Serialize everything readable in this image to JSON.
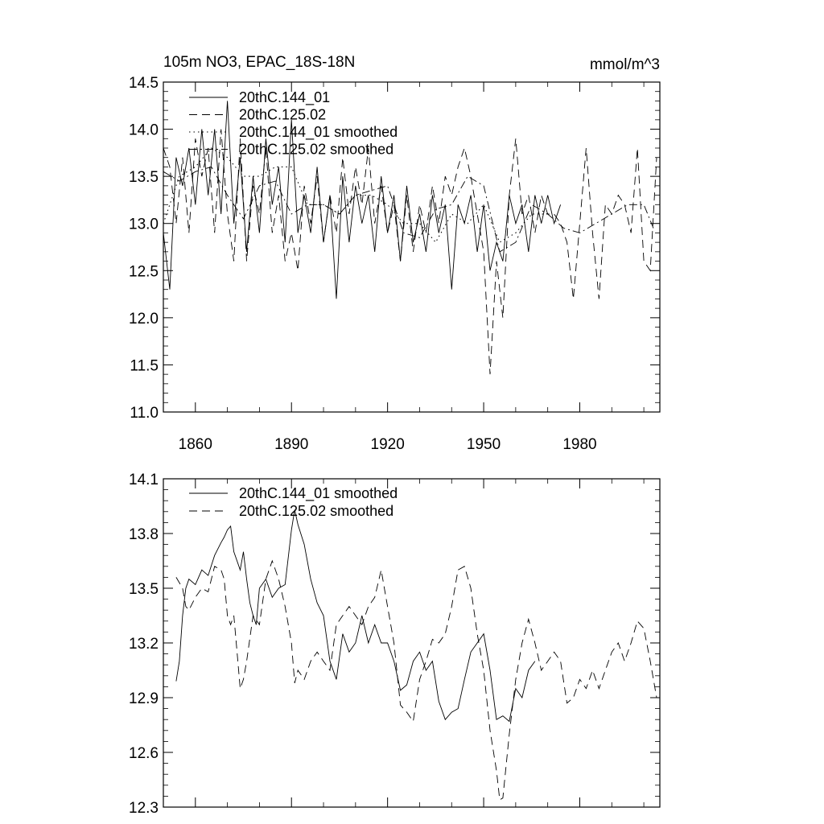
{
  "chart_data": [
    {
      "type": "line",
      "title": "105m NO3, EPAC_18S-18N",
      "units": "mmol/m^3",
      "xlabel": "",
      "ylabel": "",
      "xlim": [
        1850,
        2005
      ],
      "ylim": [
        11.0,
        14.5
      ],
      "x_ticks": [
        1860,
        1890,
        1920,
        1950,
        1980
      ],
      "x_tick_labels": [
        "1860",
        "1890",
        "1920",
        "1950",
        "1980"
      ],
      "y_ticks": [
        11.0,
        11.5,
        12.0,
        12.5,
        13.0,
        13.5,
        14.0,
        14.5
      ],
      "y_tick_labels": [
        "11.0",
        "11.5",
        "12.0",
        "12.5",
        "13.0",
        "13.5",
        "14.0",
        "14.5"
      ],
      "legend_position": "top-left",
      "series": [
        {
          "name": "20thC.144_01",
          "style": "solid",
          "x": [
            1850,
            1852,
            1854,
            1856,
            1858,
            1860,
            1862,
            1864,
            1866,
            1868,
            1870,
            1872,
            1874,
            1876,
            1878,
            1880,
            1882,
            1884,
            1886,
            1888,
            1890,
            1892,
            1894,
            1896,
            1898,
            1900,
            1902,
            1904,
            1906,
            1908,
            1910,
            1912,
            1914,
            1916,
            1918,
            1920,
            1922,
            1924,
            1926,
            1928,
            1930,
            1932,
            1934,
            1936,
            1938,
            1940,
            1942,
            1944,
            1946,
            1948,
            1950,
            1952,
            1954,
            1956,
            1958,
            1960,
            1962,
            1964,
            1966,
            1968,
            1970,
            1972,
            1974,
            1976,
            1978,
            1980,
            1982,
            1984,
            1986,
            1988,
            1990,
            1992,
            1994,
            1996,
            1998,
            2000,
            2002,
            2004
          ],
          "values": [
            12.9,
            12.3,
            13.7,
            13.4,
            13.8,
            13.2,
            14.0,
            13.3,
            14.0,
            13.1,
            14.3,
            13.0,
            13.7,
            12.7,
            13.5,
            12.9,
            13.9,
            13.2,
            13.6,
            12.8,
            14.1,
            12.9,
            13.3,
            12.9,
            13.6,
            12.8,
            13.3,
            12.2,
            13.5,
            12.8,
            13.4,
            13.0,
            13.3,
            12.7,
            13.5,
            12.9,
            13.3,
            12.6,
            13.4,
            12.8,
            13.1,
            12.7,
            13.3,
            12.9,
            13.2,
            12.3,
            13.2,
            13.0,
            13.3,
            12.7,
            13.2,
            12.5,
            12.8,
            12.6,
            13.3,
            13.0,
            13.2,
            12.7,
            13.3,
            13.0,
            13.3,
            13.0,
            13.2,
            null,
            null,
            null,
            null,
            null,
            null,
            null,
            null,
            null,
            null,
            null,
            null,
            null,
            null,
            null
          ]
        },
        {
          "name": "20thC.125.02",
          "style": "dashed",
          "x": [
            1850,
            1852,
            1854,
            1856,
            1858,
            1860,
            1862,
            1864,
            1866,
            1868,
            1870,
            1872,
            1874,
            1876,
            1878,
            1880,
            1882,
            1884,
            1886,
            1888,
            1890,
            1892,
            1894,
            1896,
            1898,
            1900,
            1902,
            1904,
            1906,
            1908,
            1910,
            1912,
            1914,
            1916,
            1918,
            1920,
            1922,
            1924,
            1926,
            1928,
            1930,
            1932,
            1934,
            1936,
            1938,
            1940,
            1942,
            1944,
            1946,
            1948,
            1950,
            1952,
            1954,
            1956,
            1958,
            1960,
            1962,
            1964,
            1966,
            1968,
            1970,
            1972,
            1974,
            1976,
            1978,
            1980,
            1982,
            1984,
            1986,
            1988,
            1990,
            1992,
            1994,
            1996,
            1998,
            2000,
            2002,
            2004
          ],
          "values": [
            13.8,
            13.6,
            13.0,
            13.7,
            12.9,
            13.9,
            13.5,
            13.8,
            12.9,
            14.0,
            13.1,
            12.6,
            13.9,
            12.6,
            13.4,
            13.1,
            13.8,
            12.9,
            13.3,
            12.6,
            12.9,
            12.5,
            13.4,
            13.0,
            13.5,
            12.8,
            13.3,
            12.9,
            13.7,
            13.1,
            13.6,
            13.2,
            13.8,
            13.0,
            13.4,
            12.9,
            13.2,
            12.6,
            13.3,
            12.7,
            13.2,
            12.9,
            13.4,
            13.0,
            13.5,
            13.3,
            13.6,
            13.8,
            13.5,
            13.1,
            12.7,
            11.4,
            12.6,
            12.0,
            13.3,
            13.9,
            13.1,
            13.3,
            12.9,
            13.3,
            13.1,
            13.1,
            13.0,
            12.8,
            12.2,
            13.0,
            13.8,
            12.9,
            12.2,
            13.2,
            13.1,
            13.3,
            13.2,
            12.9,
            13.8,
            12.6,
            12.5,
            13.7
          ]
        },
        {
          "name": "20thC.144_01 smoothed",
          "style": "dotted",
          "x": [
            1850,
            1855,
            1860,
            1865,
            1870,
            1875,
            1880,
            1885,
            1890,
            1895,
            1900,
            1905,
            1910,
            1915,
            1920,
            1925,
            1930,
            1935,
            1940,
            1945,
            1950,
            1955,
            1960,
            1965,
            1970
          ],
          "values": [
            13.0,
            13.5,
            13.6,
            13.8,
            13.7,
            13.5,
            13.5,
            13.6,
            13.6,
            13.2,
            13.2,
            13.1,
            13.3,
            13.3,
            13.2,
            13.0,
            13.0,
            12.8,
            13.1,
            13.0,
            13.2,
            12.8,
            12.9,
            13.1,
            13.1
          ]
        },
        {
          "name": "20thC.125.02 smoothed",
          "style": "dash-dot",
          "x": [
            1850,
            1855,
            1860,
            1865,
            1870,
            1875,
            1880,
            1885,
            1890,
            1895,
            1900,
            1905,
            1910,
            1915,
            1920,
            1925,
            1930,
            1935,
            1940,
            1945,
            1950,
            1955,
            1960,
            1965,
            1970,
            1975,
            1980,
            1985,
            1990,
            1995,
            2000,
            2003
          ],
          "values": [
            13.55,
            13.45,
            13.55,
            13.6,
            13.3,
            13.05,
            13.4,
            13.45,
            13.1,
            13.2,
            13.2,
            13.1,
            13.3,
            13.35,
            13.4,
            12.9,
            12.85,
            13.15,
            13.2,
            13.5,
            13.4,
            12.7,
            12.8,
            13.2,
            13.1,
            12.95,
            12.9,
            13.0,
            13.1,
            13.2,
            13.2,
            12.95
          ]
        }
      ]
    },
    {
      "type": "line",
      "title": "",
      "xlabel": "",
      "ylabel": "",
      "xlim": [
        1850,
        2005
      ],
      "ylim": [
        12.3,
        14.1
      ],
      "x_ticks": [
        1860,
        1890,
        1920,
        1950,
        1980
      ],
      "y_ticks": [
        12.3,
        12.6,
        12.9,
        13.2,
        13.5,
        13.8,
        14.1
      ],
      "y_tick_labels": [
        "12.3",
        "12.6",
        "12.9",
        "13.2",
        "13.5",
        "13.8",
        "14.1"
      ],
      "legend_position": "top-left",
      "series": [
        {
          "name": "20thC.144_01 smoothed",
          "style": "solid",
          "x": [
            1854,
            1855,
            1856,
            1857,
            1858,
            1860,
            1862,
            1864,
            1866,
            1868,
            1869,
            1870,
            1871,
            1872,
            1874,
            1875,
            1876,
            1877,
            1878,
            1879,
            1880,
            1882,
            1884,
            1886,
            1888,
            1890,
            1891,
            1892,
            1894,
            1896,
            1898,
            1900,
            1902,
            1904,
            1906,
            1908,
            1910,
            1912,
            1914,
            1916,
            1918,
            1920,
            1922,
            1924,
            1926,
            1928,
            1930,
            1932,
            1934,
            1936,
            1938,
            1940,
            1942,
            1944,
            1946,
            1948,
            1950,
            1952,
            1954,
            1956,
            1958,
            1960,
            1962,
            1964,
            1966
          ],
          "values": [
            12.99,
            13.1,
            13.35,
            13.5,
            13.55,
            13.52,
            13.6,
            13.57,
            13.68,
            13.75,
            13.78,
            13.82,
            13.84,
            13.7,
            13.6,
            13.7,
            13.55,
            13.42,
            13.35,
            13.3,
            13.5,
            13.55,
            13.45,
            13.5,
            13.52,
            13.82,
            13.93,
            13.85,
            13.74,
            13.55,
            13.42,
            13.35,
            13.1,
            13.0,
            13.25,
            13.15,
            13.2,
            13.35,
            13.2,
            13.3,
            13.2,
            13.2,
            13.1,
            12.94,
            12.97,
            13.1,
            13.15,
            13.05,
            13.1,
            12.88,
            12.78,
            12.82,
            12.84,
            13.0,
            13.15,
            13.2,
            13.25,
            13.05,
            12.78,
            12.8,
            12.77,
            12.95,
            12.9,
            13.05,
            13.1
          ]
        },
        {
          "name": "20thC.125.02 smoothed",
          "style": "dashed",
          "x": [
            1854,
            1856,
            1857,
            1858,
            1860,
            1862,
            1864,
            1866,
            1868,
            1869,
            1870,
            1871,
            1872,
            1873,
            1874,
            1875,
            1876,
            1878,
            1880,
            1882,
            1884,
            1886,
            1888,
            1890,
            1891,
            1892,
            1894,
            1896,
            1898,
            1900,
            1902,
            1904,
            1906,
            1908,
            1910,
            1912,
            1914,
            1916,
            1918,
            1920,
            1922,
            1924,
            1926,
            1928,
            1930,
            1932,
            1934,
            1936,
            1938,
            1940,
            1942,
            1944,
            1946,
            1948,
            1950,
            1952,
            1954,
            1955,
            1956,
            1958,
            1960,
            1962,
            1964,
            1966,
            1968,
            1970,
            1972,
            1974,
            1976,
            1978,
            1980,
            1982,
            1984,
            1986,
            1988,
            1990,
            1992,
            1994,
            1996,
            1998,
            2000,
            2002,
            2004
          ],
          "values": [
            13.56,
            13.5,
            13.4,
            13.38,
            13.45,
            13.5,
            13.48,
            13.62,
            13.6,
            13.55,
            13.35,
            13.3,
            13.35,
            13.15,
            12.95,
            13.0,
            13.1,
            13.35,
            13.3,
            13.55,
            13.65,
            13.55,
            13.4,
            13.2,
            12.98,
            13.05,
            13.0,
            13.1,
            13.15,
            13.1,
            13.05,
            13.3,
            13.35,
            13.4,
            13.35,
            13.3,
            13.4,
            13.45,
            13.6,
            13.4,
            13.2,
            12.86,
            12.82,
            12.77,
            13.0,
            13.1,
            13.22,
            13.2,
            13.25,
            13.4,
            13.6,
            13.62,
            13.5,
            13.25,
            13.05,
            12.72,
            12.5,
            12.34,
            12.35,
            12.7,
            13.0,
            13.2,
            13.33,
            13.2,
            13.05,
            13.1,
            13.15,
            13.1,
            12.87,
            12.9,
            13.0,
            12.95,
            13.05,
            12.95,
            13.05,
            13.15,
            13.2,
            13.1,
            13.2,
            13.32,
            13.28,
            13.1,
            12.9
          ]
        }
      ]
    }
  ]
}
